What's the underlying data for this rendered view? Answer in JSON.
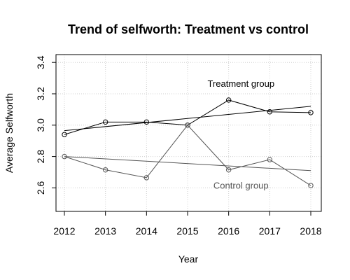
{
  "chart_data": {
    "type": "line",
    "title": "Trend of selfworth: Treatment vs control",
    "xlabel": "Year",
    "ylabel": "Average Selfworth",
    "x": [
      2012,
      2013,
      2014,
      2015,
      2016,
      2017,
      2018
    ],
    "xlim": [
      2012,
      2018
    ],
    "ylim": [
      2.45,
      3.45
    ],
    "yticks": [
      2.6,
      2.8,
      3.0,
      3.2,
      3.4
    ],
    "ytick_labels": [
      "2.6",
      "2.8",
      "3.0",
      "3.2",
      "3.4"
    ],
    "grid": true,
    "series": [
      {
        "name": "Treatment group",
        "color": "#000000",
        "values": [
          2.94,
          3.02,
          3.02,
          3.0,
          3.16,
          3.085,
          3.08
        ],
        "trend": [
          2.965,
          3.12
        ]
      },
      {
        "name": "Control group",
        "color": "#555555",
        "values": [
          2.8,
          2.715,
          2.665,
          3.0,
          2.715,
          2.78,
          2.615
        ],
        "trend": [
          2.8,
          2.71
        ]
      }
    ],
    "annotations": [
      {
        "text": "Treatment group",
        "x": 2016.3,
        "y": 3.245,
        "color": "#000000"
      },
      {
        "text": "Control group",
        "x": 2016.3,
        "y": 2.595,
        "color": "#555555"
      }
    ]
  }
}
